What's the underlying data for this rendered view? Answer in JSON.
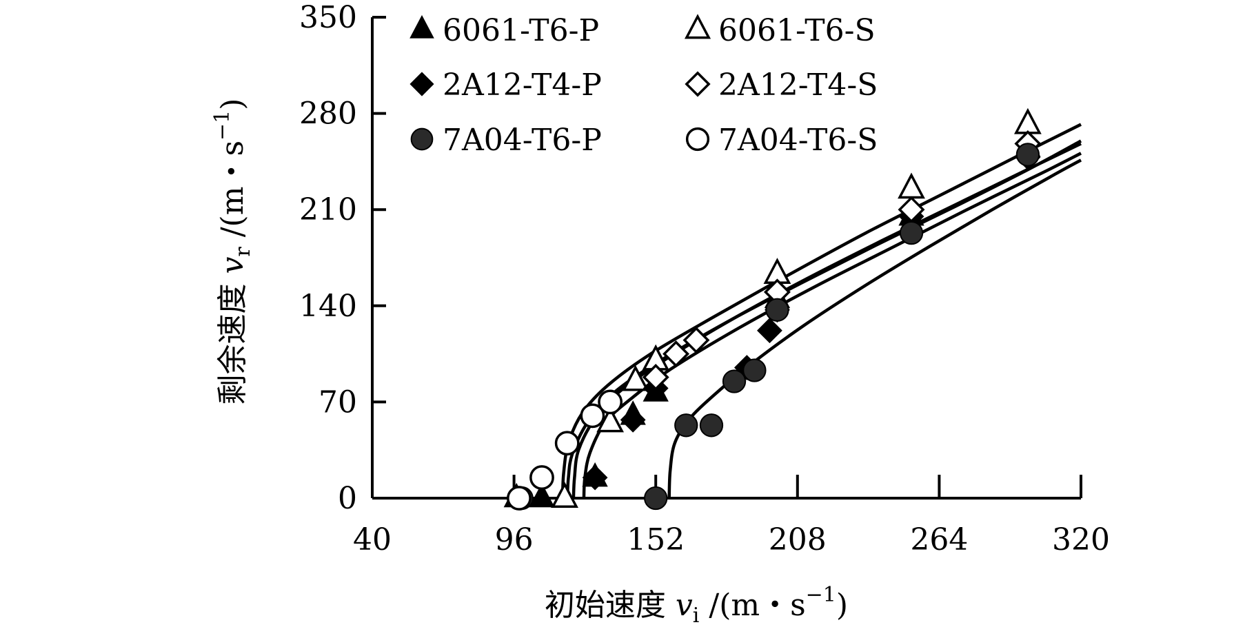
{
  "chart_data": {
    "type": "scatter",
    "title": "",
    "xlabel": "初始速度 v_i /(m・s^-1)",
    "ylabel": "剩余速度 v_r /(m・s^-1)",
    "xlim": [
      40,
      320
    ],
    "ylim": [
      0,
      350
    ],
    "xticks": [
      "40",
      "96",
      "152",
      "208",
      "264",
      "320"
    ],
    "yticks": [
      "0",
      "70",
      "140",
      "210",
      "280",
      "350"
    ],
    "legend_position": "top-left",
    "grid": false,
    "series": [
      {
        "name": "6061-T6-P",
        "marker": "triangle-filled",
        "points": [
          [
            97,
            0
          ],
          [
            107,
            0
          ],
          [
            116,
            0
          ],
          [
            128,
            15
          ],
          [
            143,
            60
          ],
          [
            152,
            77
          ],
          [
            200,
            145
          ],
          [
            253,
            205
          ],
          [
            299,
            255
          ]
        ],
        "curve": [
          [
            117.1,
            0
          ],
          [
            117.5,
            15
          ],
          [
            119,
            32
          ],
          [
            125,
            55
          ],
          [
            135,
            76
          ],
          [
            152,
            98
          ],
          [
            180,
            128
          ],
          [
            210,
            157
          ],
          [
            240,
            185
          ],
          [
            270,
            212
          ],
          [
            300,
            240
          ],
          [
            320,
            260
          ]
        ]
      },
      {
        "name": "6061-T6-S",
        "marker": "triangle-open",
        "points": [
          [
            116,
            0
          ],
          [
            134,
            55
          ],
          [
            144,
            85
          ],
          [
            152,
            100
          ],
          [
            200,
            163
          ],
          [
            253,
            225
          ],
          [
            299,
            272
          ]
        ],
        "curve": [
          [
            115.2,
            0
          ],
          [
            115.6,
            18
          ],
          [
            117.5,
            40
          ],
          [
            123,
            62
          ],
          [
            133,
            82
          ],
          [
            150,
            105
          ],
          [
            175,
            132
          ],
          [
            205,
            163
          ],
          [
            235,
            193
          ],
          [
            265,
            221
          ],
          [
            295,
            249
          ],
          [
            320,
            272
          ]
        ]
      },
      {
        "name": "2A12-T4-P",
        "marker": "diamond-filled",
        "points": [
          [
            128,
            15
          ],
          [
            143,
            57
          ],
          [
            152,
            80
          ],
          [
            188,
            95
          ],
          [
            197,
            122
          ],
          [
            200,
            137
          ],
          [
            253,
            205
          ],
          [
            299,
            248
          ]
        ],
        "curve": [
          [
            123.6,
            0
          ],
          [
            124,
            15
          ],
          [
            126,
            33
          ],
          [
            132,
            55
          ],
          [
            142,
            72
          ],
          [
            158,
            94
          ],
          [
            185,
            124
          ],
          [
            215,
            154
          ],
          [
            245,
            182
          ],
          [
            275,
            210
          ],
          [
            305,
            237
          ],
          [
            320,
            251
          ]
        ]
      },
      {
        "name": "2A12-T4-S",
        "marker": "diamond-open",
        "points": [
          [
            152,
            88
          ],
          [
            160,
            105
          ],
          [
            168,
            115
          ],
          [
            200,
            150
          ],
          [
            253,
            210
          ],
          [
            299,
            258
          ]
        ],
        "curve": [
          [
            119.5,
            0
          ],
          [
            119.9,
            15
          ],
          [
            121.5,
            35
          ],
          [
            128,
            58
          ],
          [
            138,
            78
          ],
          [
            155,
            100
          ],
          [
            182,
            130
          ],
          [
            212,
            160
          ],
          [
            242,
            188
          ],
          [
            272,
            215
          ],
          [
            302,
            242
          ],
          [
            320,
            258
          ]
        ]
      },
      {
        "name": "7A04-T6-P",
        "marker": "circle-filled",
        "points": [
          [
            99,
            0
          ],
          [
            152,
            0
          ],
          [
            164,
            53
          ],
          [
            174,
            53
          ],
          [
            183,
            85
          ],
          [
            191,
            93
          ],
          [
            200,
            137
          ],
          [
            253,
            193
          ],
          [
            299,
            250
          ]
        ],
        "curve": [
          [
            157.3,
            0
          ],
          [
            157.7,
            20
          ],
          [
            159.5,
            40
          ],
          [
            165,
            57
          ],
          [
            175,
            75
          ],
          [
            190,
            98
          ],
          [
            210,
            125
          ],
          [
            235,
            155
          ],
          [
            260,
            183
          ],
          [
            285,
            210
          ],
          [
            310,
            236
          ],
          [
            320,
            246
          ]
        ]
      },
      {
        "name": "7A04-T6-S",
        "marker": "circle-open",
        "points": [
          [
            98,
            0
          ],
          [
            107,
            15
          ],
          [
            117,
            40
          ],
          [
            127,
            60
          ],
          [
            134,
            70
          ]
        ],
        "curve": []
      }
    ]
  }
}
